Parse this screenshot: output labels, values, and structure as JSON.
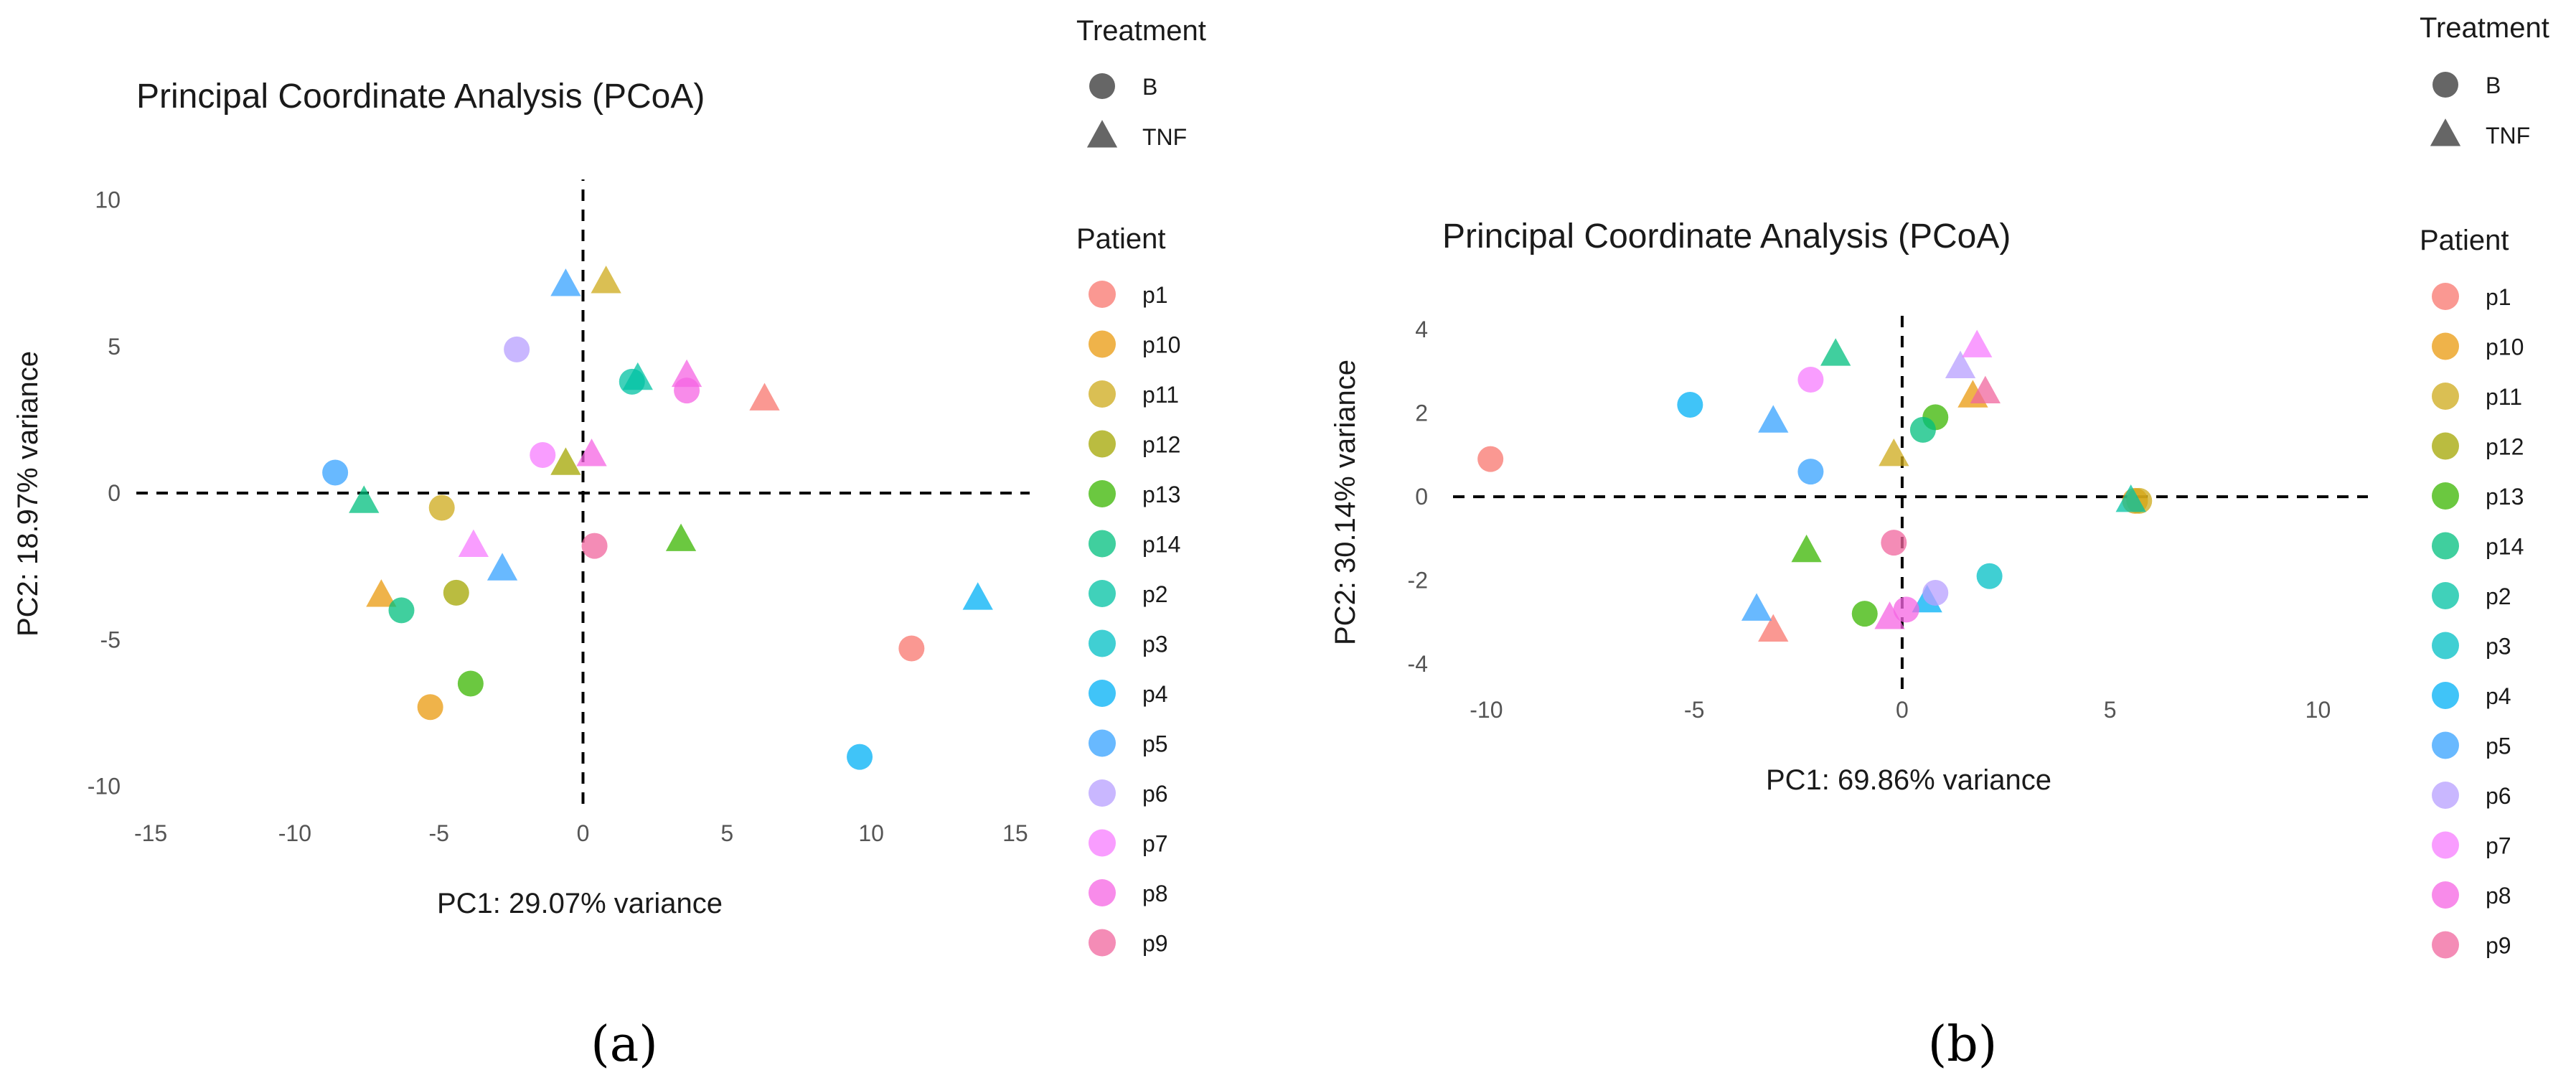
{
  "colors": {
    "p1": "#F8766D",
    "p10": "#E99A0E",
    "p11": "#CDAA1A",
    "p12": "#A3A500",
    "p13": "#39B600",
    "p14": "#00BF7D",
    "p2": "#00C1A3",
    "p3": "#00BFC4",
    "p4": "#00B0F6",
    "p5": "#35A2FF",
    "p6": "#B79FFF",
    "p7": "#F77CFF",
    "p8": "#F564E3",
    "p9": "#F0659E"
  },
  "chart_data": [
    {
      "type": "scatter",
      "panel_label": "(a)",
      "title": "Principal Coordinate Analysis (PCoA)",
      "xlabel": "PC1: 29.07% variance",
      "ylabel": "PC2: 18.97% variance",
      "xlim": [
        -15.5,
        15.5
      ],
      "ylim": [
        -10.6,
        10.7
      ],
      "xticks": [
        -15,
        -10,
        -5,
        0,
        5,
        10,
        15
      ],
      "yticks": [
        -10,
        -5,
        0,
        5,
        10
      ],
      "legend_treatment_title": "Treatment",
      "treatments": [
        "B",
        "TNF"
      ],
      "legend_patient_title": "Patient",
      "patients": [
        "p1",
        "p10",
        "p11",
        "p12",
        "p13",
        "p14",
        "p2",
        "p3",
        "p4",
        "p5",
        "p6",
        "p7",
        "p8",
        "p9"
      ],
      "points": [
        {
          "x": 11.4,
          "y": -5.3,
          "patient": "p1",
          "treatment": "B"
        },
        {
          "x": 6.3,
          "y": 3.2,
          "patient": "p1",
          "treatment": "TNF"
        },
        {
          "x": -5.3,
          "y": -7.3,
          "patient": "p10",
          "treatment": "B"
        },
        {
          "x": -7.0,
          "y": -3.5,
          "patient": "p10",
          "treatment": "TNF"
        },
        {
          "x": -4.9,
          "y": -0.5,
          "patient": "p11",
          "treatment": "B"
        },
        {
          "x": 0.8,
          "y": 7.2,
          "patient": "p11",
          "treatment": "TNF"
        },
        {
          "x": -4.4,
          "y": -3.4,
          "patient": "p12",
          "treatment": "B"
        },
        {
          "x": -0.6,
          "y": 1.0,
          "patient": "p12",
          "treatment": "TNF"
        },
        {
          "x": -3.9,
          "y": -6.5,
          "patient": "p13",
          "treatment": "B"
        },
        {
          "x": 3.4,
          "y": -1.6,
          "patient": "p13",
          "treatment": "TNF"
        },
        {
          "x": -6.3,
          "y": -4.0,
          "patient": "p14",
          "treatment": "B"
        },
        {
          "x": -7.6,
          "y": -0.3,
          "patient": "p14",
          "treatment": "TNF"
        },
        {
          "x": 1.7,
          "y": 3.8,
          "patient": "p2",
          "treatment": "B"
        },
        {
          "x": 1.9,
          "y": 3.9,
          "patient": "p2",
          "treatment": "TNF"
        },
        {
          "x": 9.6,
          "y": -9.0,
          "patient": "p4",
          "treatment": "B"
        },
        {
          "x": 13.7,
          "y": -3.6,
          "patient": "p4",
          "treatment": "TNF"
        },
        {
          "x": -8.6,
          "y": 0.7,
          "patient": "p5",
          "treatment": "B"
        },
        {
          "x": -0.6,
          "y": 7.1,
          "patient": "p5",
          "treatment": "TNF"
        },
        {
          "x": -2.8,
          "y": -2.6,
          "patient": "p5",
          "treatment": "TNF"
        },
        {
          "x": -2.3,
          "y": 4.9,
          "patient": "p6",
          "treatment": "B"
        },
        {
          "x": -1.4,
          "y": 1.3,
          "patient": "p7",
          "treatment": "B"
        },
        {
          "x": -3.8,
          "y": -1.8,
          "patient": "p7",
          "treatment": "TNF"
        },
        {
          "x": 3.6,
          "y": 3.5,
          "patient": "p8",
          "treatment": "B"
        },
        {
          "x": 3.6,
          "y": 4.0,
          "patient": "p8",
          "treatment": "TNF"
        },
        {
          "x": 0.3,
          "y": 1.3,
          "patient": "p8",
          "treatment": "TNF"
        },
        {
          "x": 0.4,
          "y": -1.8,
          "patient": "p9",
          "treatment": "B"
        }
      ]
    },
    {
      "type": "scatter",
      "panel_label": "(b)",
      "title": "Principal Coordinate Analysis (PCoA)",
      "xlabel": "PC1: 69.86% variance",
      "ylabel": "PC2: 30.14% variance",
      "xlim": [
        -10.8,
        11.2
      ],
      "ylim": [
        -4.6,
        4.5
      ],
      "xticks": [
        -10,
        -5,
        0,
        5,
        10
      ],
      "yticks": [
        -4,
        -2,
        0,
        2,
        4
      ],
      "legend_treatment_title": "Treatment",
      "treatments": [
        "B",
        "TNF"
      ],
      "legend_patient_title": "Patient",
      "patients": [
        "p1",
        "p10",
        "p11",
        "p12",
        "p13",
        "p14",
        "p2",
        "p3",
        "p4",
        "p5",
        "p6",
        "p7",
        "p8",
        "p9"
      ],
      "points": [
        {
          "x": -9.9,
          "y": 0.9,
          "patient": "p1",
          "treatment": "B"
        },
        {
          "x": -3.1,
          "y": -3.2,
          "patient": "p1",
          "treatment": "TNF"
        },
        {
          "x": 5.6,
          "y": -0.1,
          "patient": "p10",
          "treatment": "B"
        },
        {
          "x": 1.7,
          "y": 2.4,
          "patient": "p10",
          "treatment": "TNF"
        },
        {
          "x": 5.7,
          "y": -0.1,
          "patient": "p11",
          "treatment": "B"
        },
        {
          "x": -0.2,
          "y": 1.0,
          "patient": "p11",
          "treatment": "TNF"
        },
        {
          "x": 0.8,
          "y": 1.9,
          "patient": "p13",
          "treatment": "B"
        },
        {
          "x": -0.9,
          "y": -2.8,
          "patient": "p13",
          "treatment": "B"
        },
        {
          "x": -2.3,
          "y": -1.3,
          "patient": "p13",
          "treatment": "TNF"
        },
        {
          "x": 0.5,
          "y": 1.6,
          "patient": "p14",
          "treatment": "B"
        },
        {
          "x": -1.6,
          "y": 3.4,
          "patient": "p14",
          "treatment": "TNF"
        },
        {
          "x": 5.5,
          "y": -0.1,
          "patient": "p2",
          "treatment": "TNF"
        },
        {
          "x": 2.1,
          "y": -1.9,
          "patient": "p3",
          "treatment": "B"
        },
        {
          "x": -5.1,
          "y": 2.2,
          "patient": "p4",
          "treatment": "B"
        },
        {
          "x": 0.6,
          "y": -2.5,
          "patient": "p4",
          "treatment": "TNF"
        },
        {
          "x": -2.2,
          "y": 0.6,
          "patient": "p5",
          "treatment": "B"
        },
        {
          "x": -3.1,
          "y": 1.8,
          "patient": "p5",
          "treatment": "TNF"
        },
        {
          "x": -3.5,
          "y": -2.7,
          "patient": "p5",
          "treatment": "TNF"
        },
        {
          "x": 0.8,
          "y": -2.3,
          "patient": "p6",
          "treatment": "B"
        },
        {
          "x": 1.4,
          "y": 3.1,
          "patient": "p6",
          "treatment": "TNF"
        },
        {
          "x": -2.2,
          "y": 2.8,
          "patient": "p7",
          "treatment": "B"
        },
        {
          "x": 1.8,
          "y": 3.6,
          "patient": "p7",
          "treatment": "TNF"
        },
        {
          "x": 0.1,
          "y": -2.7,
          "patient": "p8",
          "treatment": "B"
        },
        {
          "x": -0.3,
          "y": -2.9,
          "patient": "p8",
          "treatment": "TNF"
        },
        {
          "x": -0.2,
          "y": -1.1,
          "patient": "p9",
          "treatment": "B"
        },
        {
          "x": 2.0,
          "y": 2.5,
          "patient": "p9",
          "treatment": "TNF"
        }
      ]
    }
  ]
}
